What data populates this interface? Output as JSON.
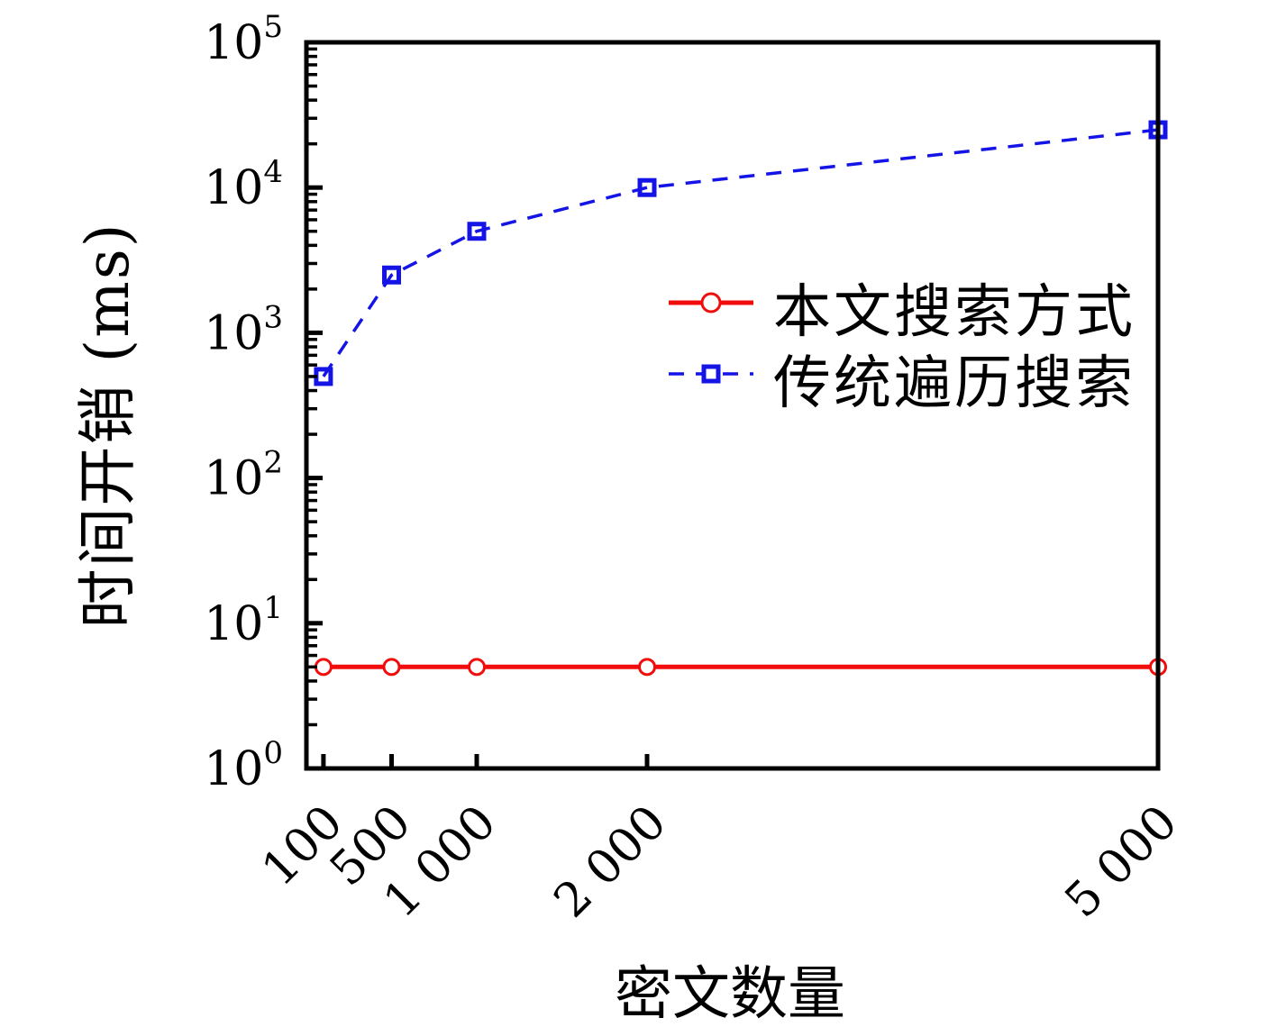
{
  "figure": {
    "background": "#ffffff",
    "axis_color": "#000000"
  },
  "chart_data": {
    "type": "line",
    "title": "",
    "xlabel": "密文数量",
    "ylabel": "时间开销 (ms)",
    "x": [
      100,
      500,
      1000,
      2000,
      5000
    ],
    "x_tick_labels": [
      "100",
      "500",
      "1 000",
      "2 000",
      "5 000"
    ],
    "xlim": [
      0,
      5000
    ],
    "y_scale": "log10",
    "ylim": [
      1,
      100000
    ],
    "y_tick_base": "10",
    "y_tick_exponents": [
      0,
      1,
      2,
      3,
      4,
      5
    ],
    "grid": false,
    "legend_position": "center-right",
    "series": [
      {
        "name": "本文搜索方式",
        "values": [
          5,
          5,
          5,
          5,
          5
        ],
        "color": "#f20d0d",
        "line_style": "solid",
        "line_width": 5,
        "marker": "circle"
      },
      {
        "name": "传统遍历搜索",
        "values": [
          500,
          2500,
          5000,
          10000,
          25000
        ],
        "color": "#1414e6",
        "line_style": "dashed",
        "line_width": 3.5,
        "marker": "square"
      }
    ]
  }
}
